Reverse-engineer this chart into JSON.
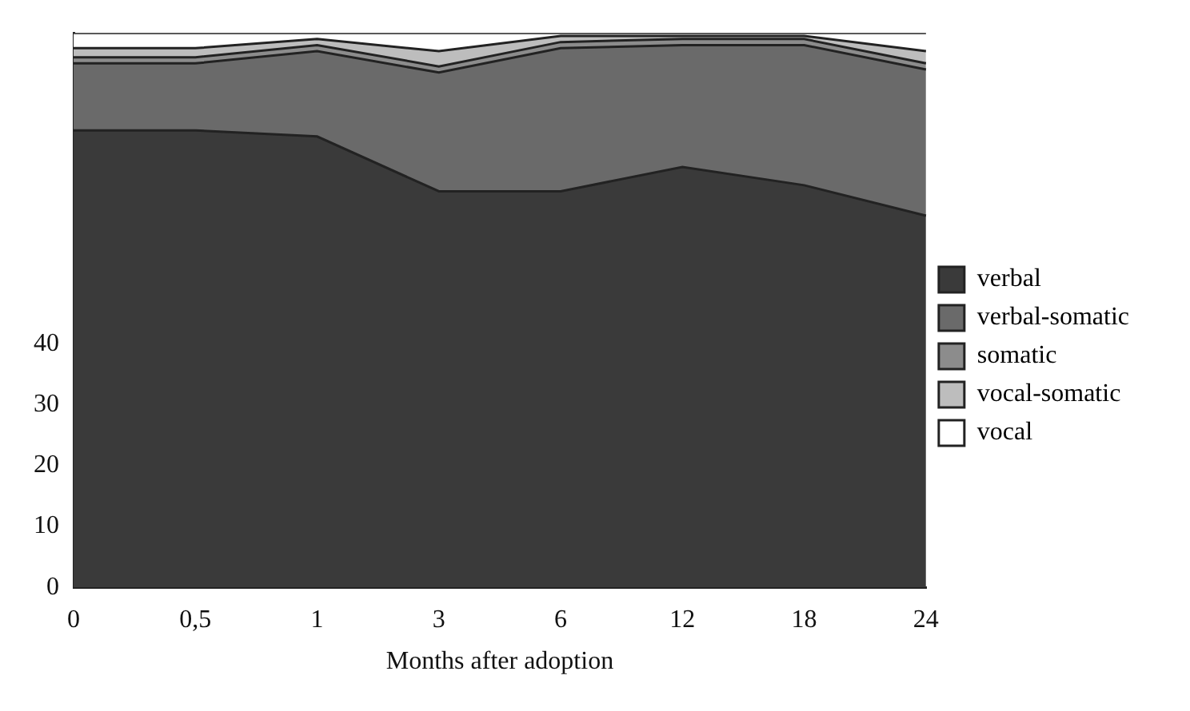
{
  "chart_data": {
    "type": "area",
    "stacked": true,
    "xlabel": "Months after adoption",
    "categories": [
      "0",
      "0,5",
      "1",
      "3",
      "6",
      "12",
      "18",
      "24"
    ],
    "series": [
      {
        "name": "verbal",
        "color": "#3a3a3a",
        "values": [
          75,
          75,
          74,
          65,
          65,
          69,
          66,
          61
        ]
      },
      {
        "name": "verbal-somatic",
        "color": "#6a6a6a",
        "values": [
          11,
          11,
          14,
          19.5,
          23.5,
          20,
          23,
          24
        ]
      },
      {
        "name": "somatic",
        "color": "#8c8c8c",
        "values": [
          1,
          1,
          1,
          1,
          1,
          1,
          1,
          1
        ]
      },
      {
        "name": "vocal-somatic",
        "color": "#bdbdbd",
        "values": [
          1.5,
          1.5,
          1,
          2.5,
          1,
          0.5,
          0.5,
          2
        ]
      },
      {
        "name": "vocal",
        "color": "#ffffff",
        "values": [
          2.5,
          2.5,
          1,
          3,
          0.5,
          0.5,
          0.5,
          3
        ]
      }
    ],
    "ylim": [
      0,
      91
    ],
    "yticks": [
      0,
      10,
      20,
      30,
      40
    ],
    "grid": false,
    "legend": "right"
  }
}
